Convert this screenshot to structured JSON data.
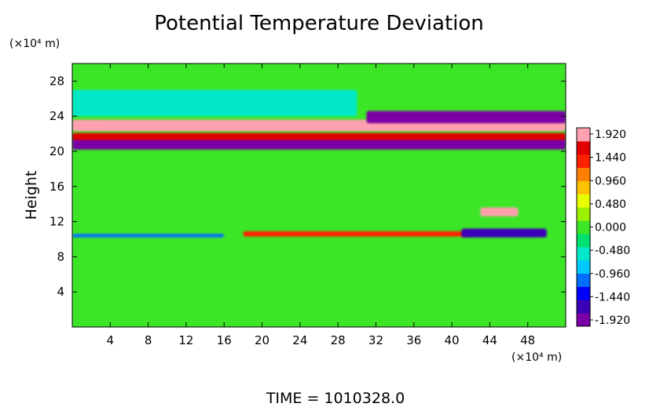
{
  "chart_data": {
    "type": "heatmap",
    "title": "Potential Temperature Deviation",
    "xlabel": "",
    "ylabel": "Height",
    "x_unit": "(×10⁴ m)",
    "y_unit": "(×10⁴ m)",
    "footer": "TIME = 1010328.0",
    "xlim": [
      0,
      52
    ],
    "ylim": [
      0,
      30
    ],
    "x_ticks": [
      4,
      8,
      12,
      16,
      20,
      24,
      28,
      32,
      36,
      40,
      44,
      48
    ],
    "y_ticks": [
      4,
      8,
      12,
      16,
      20,
      24,
      28
    ],
    "x_tick_labels": [
      "4",
      "8",
      "12",
      "16",
      "20",
      "24",
      "28",
      "32",
      "36",
      "40",
      "44",
      "48"
    ],
    "y_tick_labels": [
      "4",
      "8",
      "12",
      "16",
      "20",
      "24",
      "28"
    ],
    "colorbar": {
      "min": -1.92,
      "max": 1.92,
      "labels": [
        "1.920",
        "1.440",
        "0.960",
        "0.480",
        "0.000",
        "-0.480",
        "-0.960",
        "-1.440",
        "-1.920"
      ],
      "colors": [
        "#7a00a6",
        "#3b00b8",
        "#0000ff",
        "#006eff",
        "#00c8ff",
        "#00e8c8",
        "#00e070",
        "#3ce626",
        "#9cf000",
        "#e8ff00",
        "#ffc000",
        "#ff8000",
        "#ff2000",
        "#e00000",
        "#ffa0b0"
      ]
    },
    "background_value": 0.12,
    "features": [
      {
        "feature": "upper-warm-band",
        "x": [
          0,
          52
        ],
        "y": [
          22.3,
          23.6
        ],
        "value": 1.92
      },
      {
        "feature": "upper-cold-band",
        "x": [
          0,
          52
        ],
        "y": [
          20.2,
          21.6
        ],
        "value": -1.92
      },
      {
        "feature": "middle-warm-band",
        "x": [
          0,
          52
        ],
        "y": [
          21.3,
          22.1
        ],
        "value": 1.6
      },
      {
        "feature": "upper-right-cold-lobe",
        "x": [
          31,
          52
        ],
        "y": [
          23.2,
          24.6
        ],
        "value": -1.8
      },
      {
        "feature": "lower-cold-line",
        "x": [
          0,
          16
        ],
        "y": [
          10.2,
          10.6
        ],
        "value": -0.9
      },
      {
        "feature": "lower-warm-line",
        "x": [
          18,
          42
        ],
        "y": [
          10.3,
          10.9
        ],
        "value": 1.2
      },
      {
        "feature": "lower-right-cold-patch",
        "x": [
          41,
          50
        ],
        "y": [
          10.2,
          11.2
        ],
        "value": -1.6
      },
      {
        "feature": "lower-right-warm-patch",
        "x": [
          43,
          47
        ],
        "y": [
          12.6,
          13.6
        ],
        "value": 1.7
      },
      {
        "feature": "upper-cyan-region",
        "x": [
          0,
          30
        ],
        "y": [
          24.0,
          27.0
        ],
        "value": -0.4
      }
    ]
  }
}
